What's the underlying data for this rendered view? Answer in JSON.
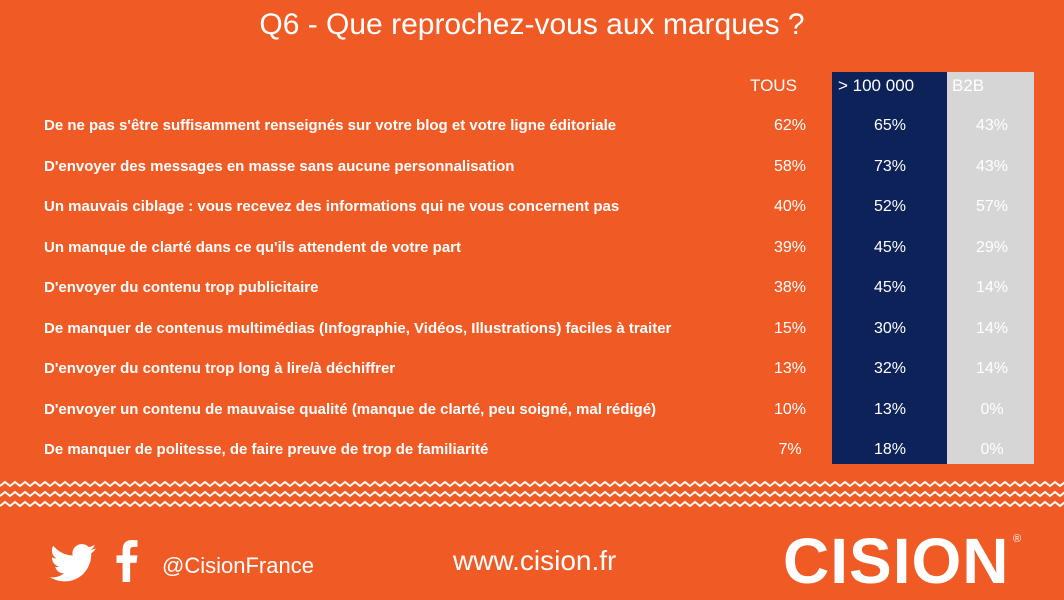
{
  "title": "Q6 - Que reprochez-vous aux marques ?",
  "columns": {
    "tous": "TOUS",
    "big": "> 100 000",
    "b2b": "B2B"
  },
  "colors": {
    "background": "#f05a24",
    "big_col": "#0d2259",
    "b2b_col": "#d6d6d6"
  },
  "chart_data": {
    "type": "table",
    "title": "Q6 - Que reprochez-vous aux marques ?",
    "columns": [
      "TOUS",
      "> 100 000",
      "B2B"
    ],
    "rows": [
      {
        "label": "De ne pas s'être suffisamment renseignés sur votre blog et votre ligne éditoriale",
        "tous": "62%",
        "big": "65%",
        "b2b": "43%"
      },
      {
        "label": "D'envoyer des messages en masse sans aucune personnalisation",
        "tous": "58%",
        "big": "73%",
        "b2b": "43%"
      },
      {
        "label": "Un mauvais ciblage : vous recevez des informations qui ne vous concernent pas",
        "tous": "40%",
        "big": "52%",
        "b2b": "57%"
      },
      {
        "label": "Un manque de clarté dans ce qu'ils attendent de votre part",
        "tous": "39%",
        "big": "45%",
        "b2b": "29%"
      },
      {
        "label": "D'envoyer du contenu trop publicitaire",
        "tous": "38%",
        "big": "45%",
        "b2b": "14%"
      },
      {
        "label": "De manquer de contenus multimédias (Infographie, Vidéos, Illustrations) faciles à traiter",
        "tous": "15%",
        "big": "30%",
        "b2b": "14%"
      },
      {
        "label": "D'envoyer du contenu trop long à lire/à déchiffrer",
        "tous": "13%",
        "big": "32%",
        "b2b": "14%"
      },
      {
        "label": "D'envoyer un contenu de mauvaise qualité (manque de clarté, peu soigné, mal rédigé)",
        "tous": "10%",
        "big": "13%",
        "b2b": "0%"
      },
      {
        "label": "De manquer de politesse, de faire preuve de trop de familiarité",
        "tous": "7%",
        "big": "18%",
        "b2b": "0%"
      }
    ]
  },
  "footer": {
    "twitter_icon": "twitter-icon",
    "facebook_icon": "facebook-icon",
    "handle": "@CisionFrance",
    "site": "www.cision.fr",
    "logo": "CISION",
    "registered": "®"
  }
}
